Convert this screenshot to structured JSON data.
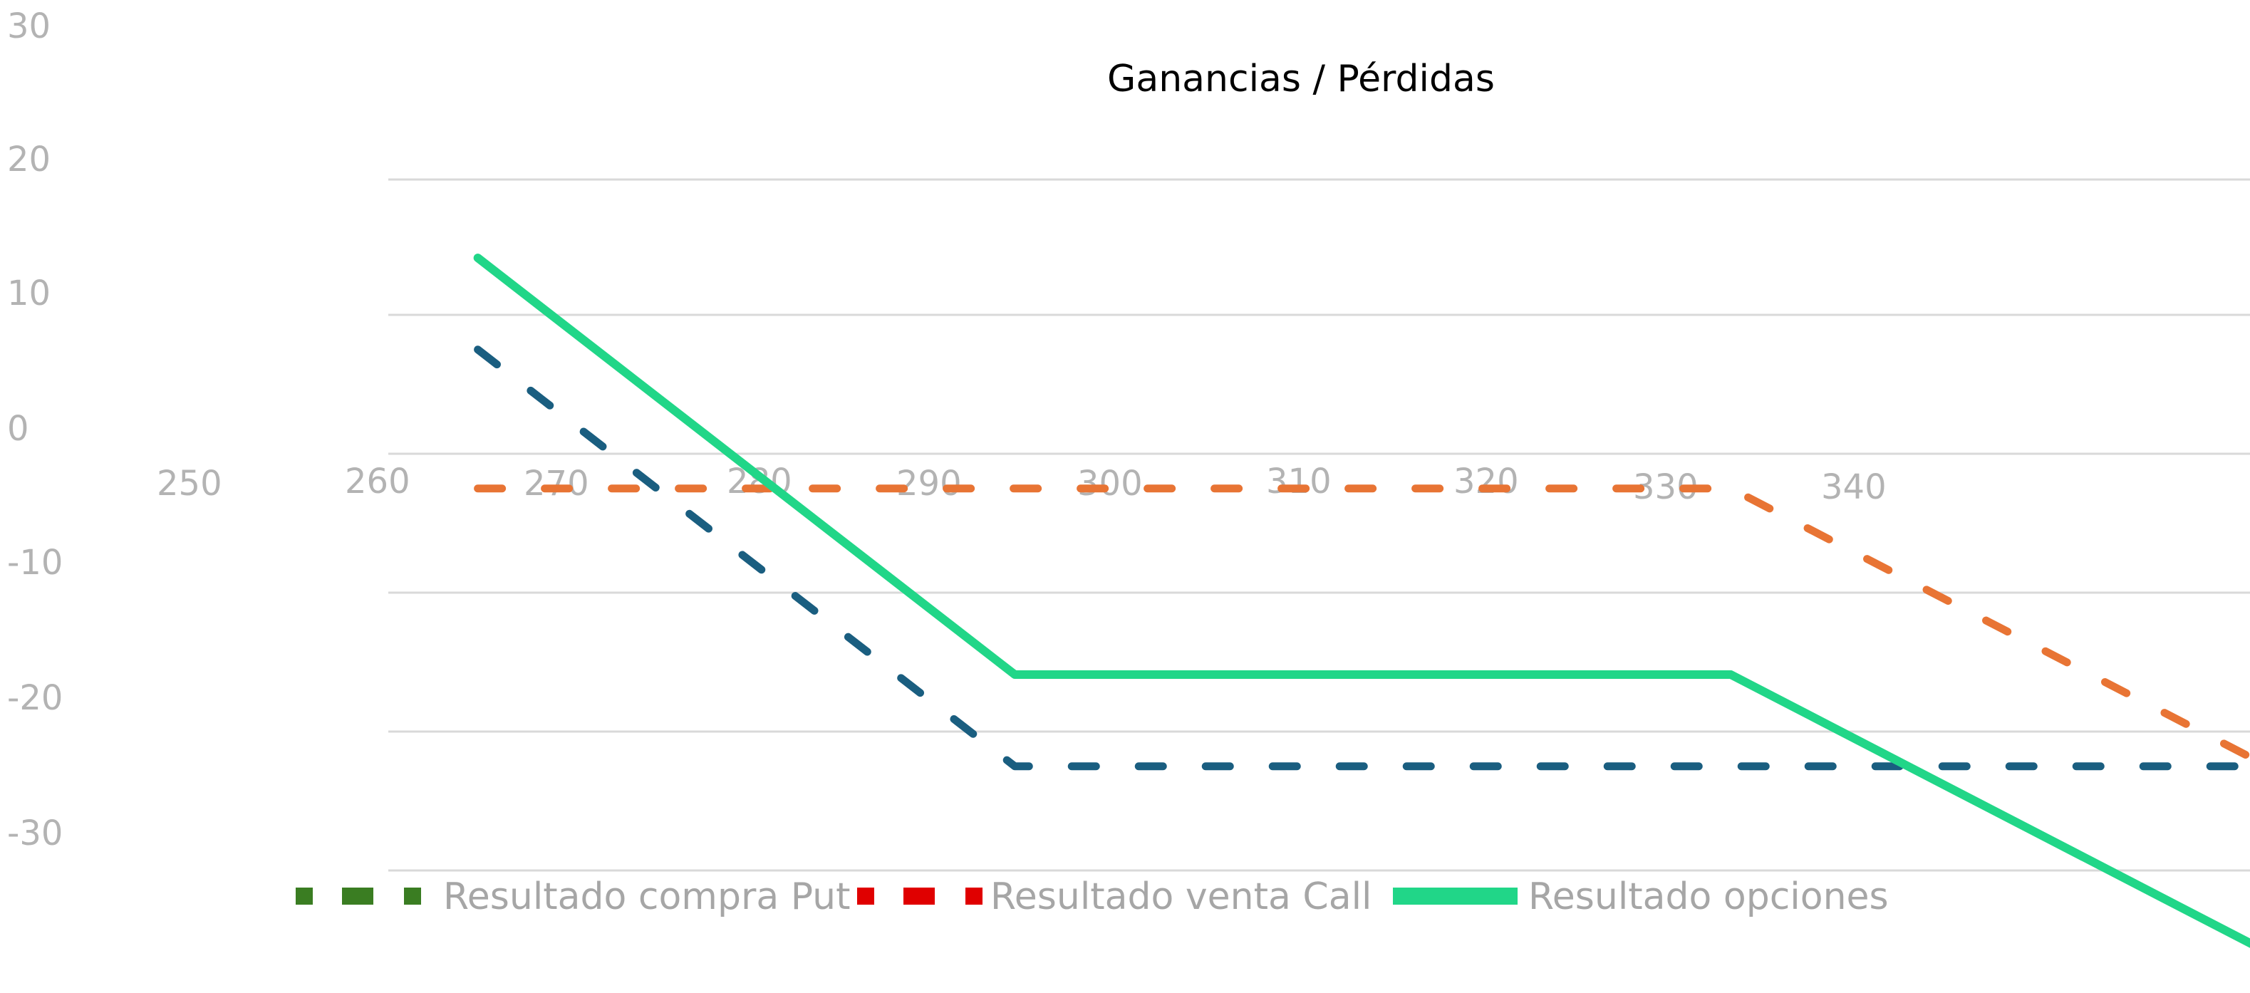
{
  "chart_data": {
    "type": "line",
    "title": "Ganancias / Pérdidas",
    "xlabel": "",
    "ylabel": "",
    "y_ticks": [
      "30",
      "20",
      "10",
      "0",
      "-10",
      "-20",
      "-30"
    ],
    "x_ticks": [
      "250",
      "260",
      "270",
      "280",
      "290",
      "300",
      "310",
      "320",
      "330",
      "340"
    ],
    "ylim": [
      -36,
      20
    ],
    "xlim": [
      255,
      359
    ],
    "grid": true,
    "legend_position": "bottom",
    "series": [
      {
        "name": "Resultado compra Put",
        "style": "dashed",
        "color": "#1a5e80",
        "legend_color": "#3a7d22",
        "x": [
          260,
          290,
          340,
          360
        ],
        "y": [
          7.5,
          -22.5,
          -22.5,
          -22.5
        ]
      },
      {
        "name": "Resultado venta Call",
        "style": "dashed",
        "color": "#e87434",
        "legend_color": "#e00000",
        "x": [
          260,
          330,
          360
        ],
        "y": [
          -2.5,
          -2.5,
          -22.5
        ]
      },
      {
        "name": "Resultado opciones",
        "style": "solid",
        "color": "#21d688",
        "legend_color": "#21d688",
        "x": [
          260,
          290,
          330,
          360
        ],
        "y": [
          14.1,
          -15.9,
          -15.9,
          -35.9
        ]
      }
    ]
  }
}
